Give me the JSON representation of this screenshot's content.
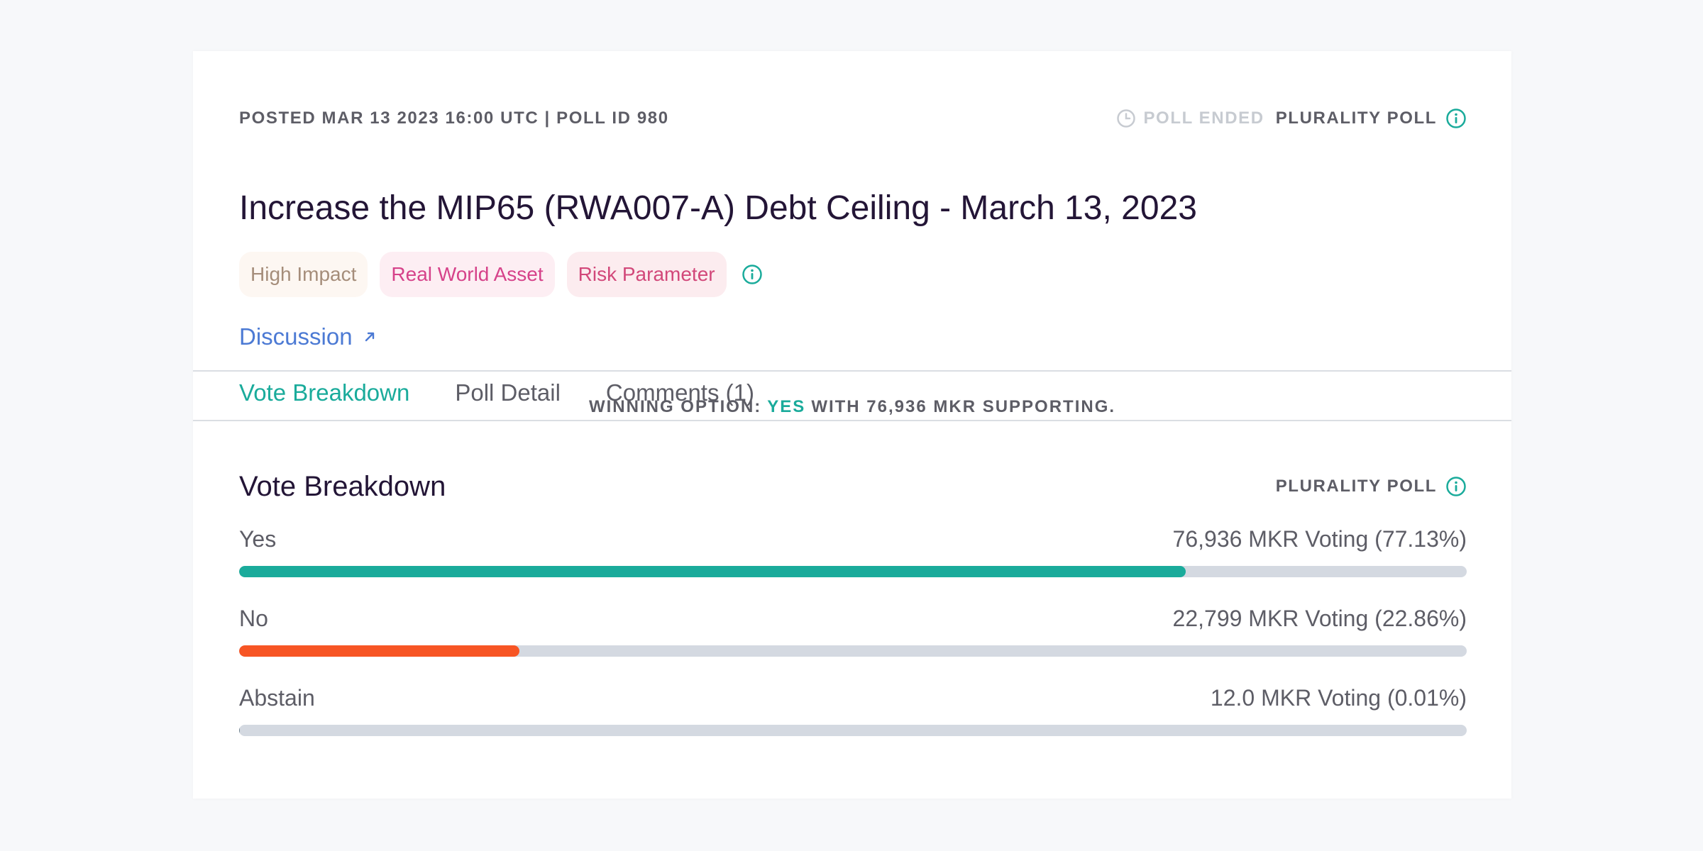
{
  "poll": {
    "posted": "POSTED MAR 13 2023 16:00 UTC | POLL ID 980",
    "status": "POLL ENDED",
    "type": "PLURALITY POLL",
    "title": "Increase the MIP65 (RWA007-A) Debt Ceiling - March 13, 2023",
    "tags": [
      {
        "label": "High Impact",
        "bg": "#fdf7f2",
        "color": "#a58d7a"
      },
      {
        "label": "Real World Asset",
        "bg": "#fdeef3",
        "color": "#d6428a"
      },
      {
        "label": "Risk Parameter",
        "bg": "#fcecef",
        "color": "#d2487a"
      }
    ],
    "discussion": "Discussion"
  },
  "tabs": [
    "Vote Breakdown",
    "Poll Detail",
    "Comments (1)"
  ],
  "winning": {
    "prefix": "WINNING OPTION:",
    "option": "YES",
    "suffix": "WITH 76,936 MKR SUPPORTING."
  },
  "breakdown": {
    "title": "Vote Breakdown",
    "type": "PLURALITY POLL",
    "options": [
      {
        "label": "Yes",
        "value": "76,936 MKR Voting (77.13%)",
        "pct": 77.13,
        "color": "#1aab9b"
      },
      {
        "label": "No",
        "value": "22,799 MKR Voting (22.86%)",
        "pct": 22.86,
        "color": "#f75524"
      },
      {
        "label": "Abstain",
        "value": "12.0 MKR Voting (0.01%)",
        "pct": 0.01,
        "color": "#708390"
      }
    ]
  },
  "colors": {
    "accent": "#1aab9b",
    "link": "#4c7ad4",
    "title": "#231536"
  }
}
